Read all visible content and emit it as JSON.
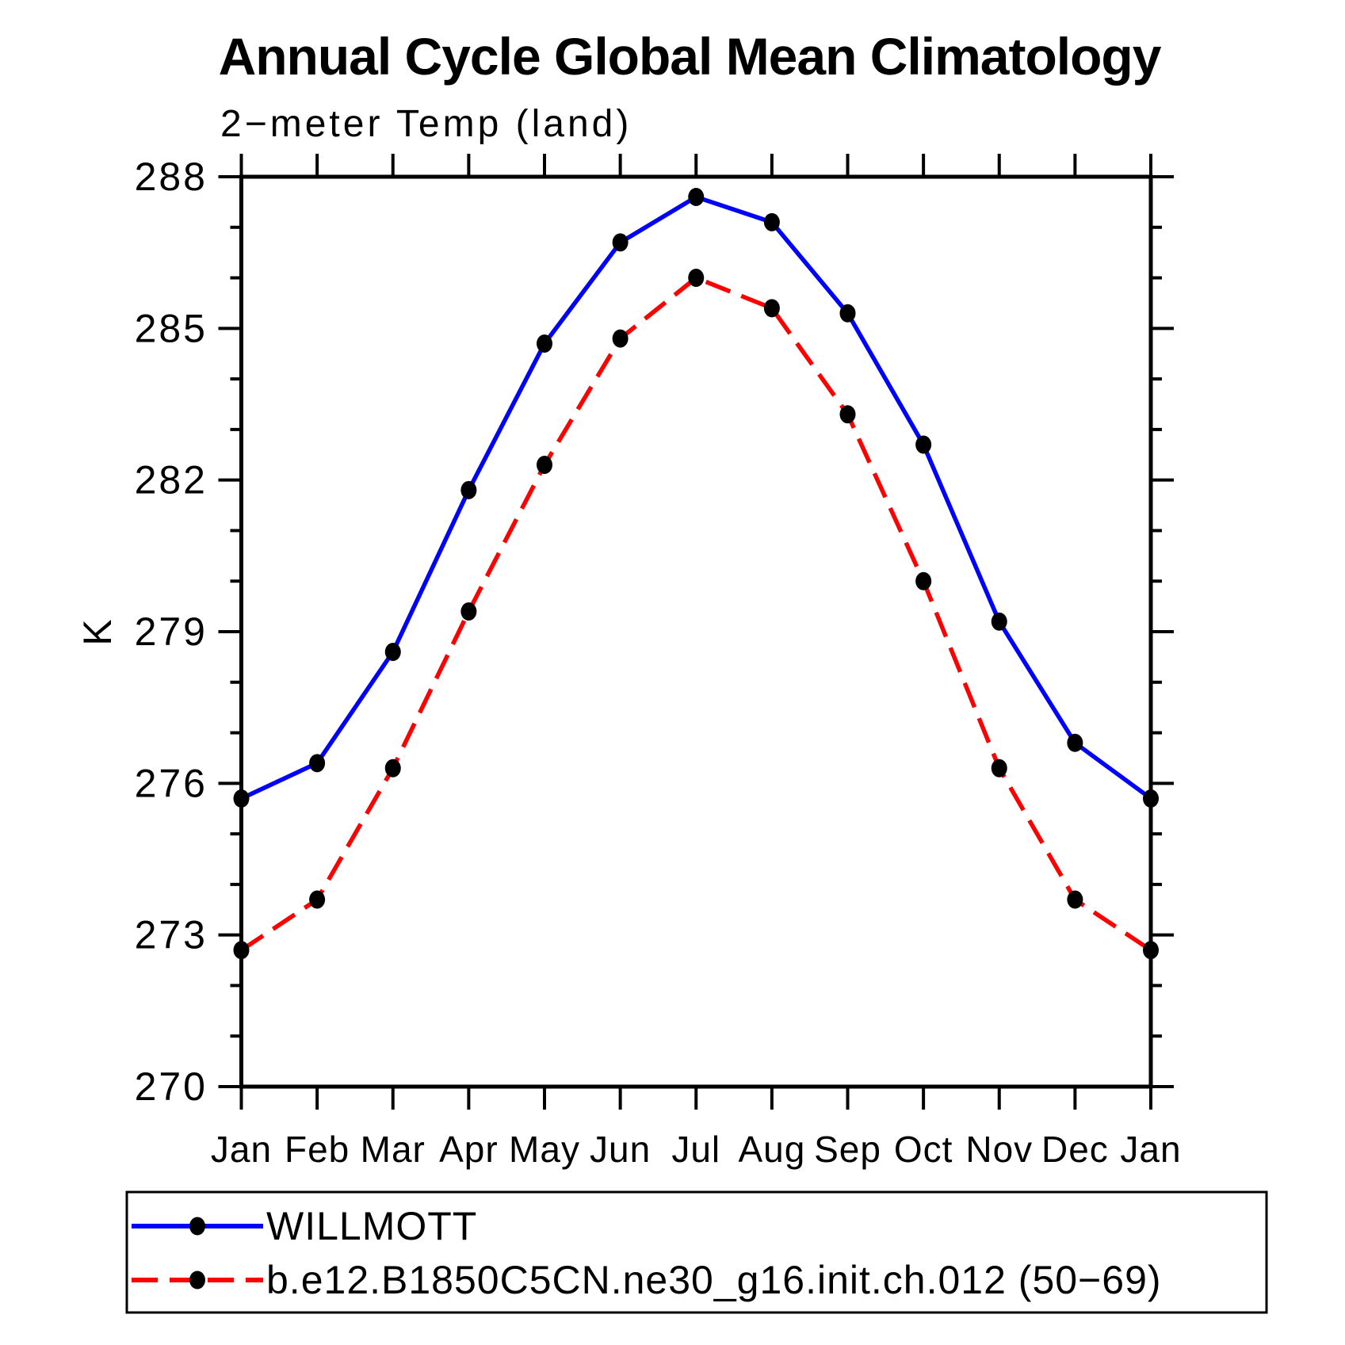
{
  "title": "Annual Cycle Global Mean Climatology",
  "chart_data": {
    "type": "line",
    "title": "Annual Cycle Global Mean Climatology",
    "subtitle": "2−meter Temp (land)",
    "ylabel": "K",
    "xlabel": "",
    "categories": [
      "Jan",
      "Feb",
      "Mar",
      "Apr",
      "May",
      "Jun",
      "Jul",
      "Aug",
      "Sep",
      "Oct",
      "Nov",
      "Dec",
      "Jan"
    ],
    "ylim": [
      270,
      288
    ],
    "ytick_major_interval": 3,
    "ytick_minor_interval": 1,
    "ytick_labels": [
      "270",
      "273",
      "276",
      "279",
      "282",
      "285",
      "288"
    ],
    "grid": false,
    "legend_position": "bottom",
    "series": [
      {
        "name": "WILLMOTT",
        "color": "#0000ff",
        "line_style": "solid",
        "marker": "filled-circle",
        "marker_color": "#000000",
        "values": [
          275.7,
          276.4,
          278.6,
          281.8,
          284.7,
          286.7,
          287.6,
          287.1,
          285.3,
          282.7,
          279.2,
          276.8,
          275.7
        ]
      },
      {
        "name": "b.e12.B1850C5CN.ne30_g16.init.ch.012 (50−69)",
        "color": "#ff0000",
        "line_style": "dashed",
        "marker": "filled-circle",
        "marker_color": "#000000",
        "values": [
          272.7,
          273.7,
          276.3,
          279.4,
          282.3,
          284.8,
          286.0,
          285.4,
          283.3,
          280.0,
          276.3,
          273.7,
          272.7
        ]
      }
    ]
  }
}
